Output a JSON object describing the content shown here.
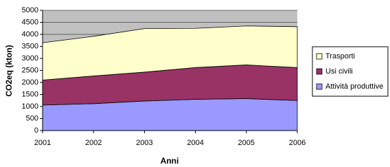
{
  "chart_data": {
    "type": "stacked-area",
    "x_label": "Anni",
    "y_label": "CO2eq (kton)",
    "categories": [
      "2001",
      "2002",
      "2003",
      "2004",
      "2005",
      "2006"
    ],
    "series": [
      {
        "name": "Attività produttive",
        "color": "#9999ff",
        "values": [
          1060,
          1120,
          1230,
          1300,
          1330,
          1250
        ]
      },
      {
        "name": "Usi civili",
        "color": "#993366",
        "values": [
          1040,
          1150,
          1200,
          1320,
          1400,
          1370
        ]
      },
      {
        "name": "Trasporti",
        "color": "#ffffcc",
        "values": [
          1550,
          1650,
          1810,
          1630,
          1620,
          1700
        ]
      }
    ],
    "ylim": [
      0,
      5000
    ],
    "yticks": [
      0,
      500,
      1000,
      1500,
      2000,
      2500,
      3000,
      3500,
      4000,
      4500,
      5000
    ],
    "grid": true,
    "plot_background": "#c0c0c0",
    "legend": "right"
  }
}
